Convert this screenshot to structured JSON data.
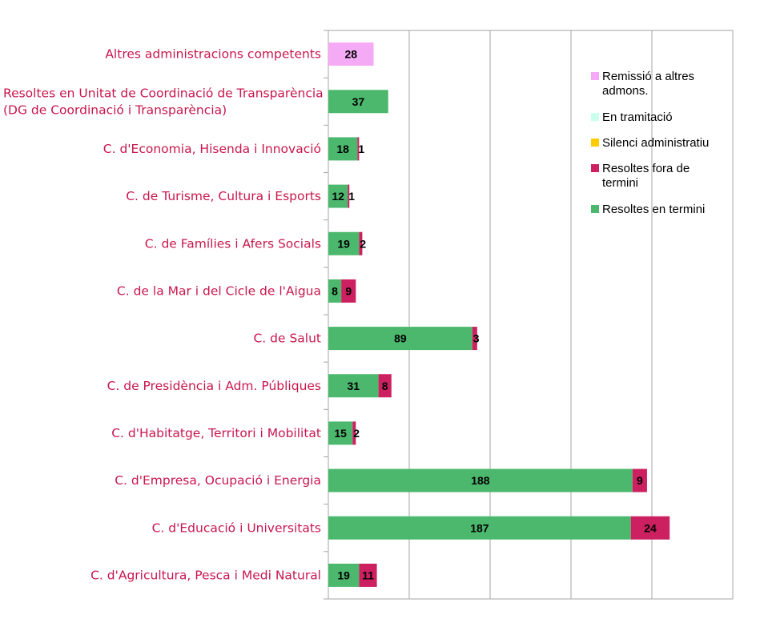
{
  "chart_data": {
    "type": "bar",
    "orientation": "horizontal",
    "stacked": true,
    "xlim": [
      0,
      250
    ],
    "grid": true,
    "legend_position": "right",
    "categories": [
      [
        "Altres  administracions competents"
      ],
      [
        "Resoltes en Unitat de Coordinació de Transparència",
        "(DG de Coordinació i Transparència)"
      ],
      [
        "C. d'Economia, Hisenda i Innovació"
      ],
      [
        "C. de Turisme, Cultura i Esports"
      ],
      [
        "C. de Famílies i Afers Socials"
      ],
      [
        "C. de la Mar i del Cicle de l'Aigua"
      ],
      [
        "C. de Salut"
      ],
      [
        "C. de Presidència i Adm. Públiques"
      ],
      [
        "C. d'Habitatge, Territori i Mobilitat"
      ],
      [
        "C. d'Empresa, Ocupació i Energia"
      ],
      [
        "C. d'Educació i Universitats"
      ],
      [
        "C. d'Agricultura, Pesca i Medi Natural"
      ]
    ],
    "series": [
      {
        "name": [
          "Resoltes en termini"
        ],
        "color": "#4cb86d",
        "values": [
          0,
          37,
          18,
          12,
          19,
          8,
          89,
          31,
          15,
          188,
          187,
          19
        ]
      },
      {
        "name": [
          "Resoltes fora de",
          "termini"
        ],
        "color": "#cc2060",
        "values": [
          0,
          0,
          1,
          1,
          2,
          9,
          3,
          8,
          2,
          9,
          24,
          11
        ]
      },
      {
        "name": [
          "Silenci administratiu"
        ],
        "color": "#ffcc00",
        "values": [
          0,
          0,
          0,
          0,
          0,
          0,
          0,
          0,
          0,
          0,
          0,
          0
        ]
      },
      {
        "name": [
          "En tramitació"
        ],
        "color": "#ccffee",
        "values": [
          0,
          0,
          0,
          0,
          0,
          0,
          0,
          0,
          0,
          0,
          0,
          0
        ]
      },
      {
        "name": [
          "Remissió a altres",
          "admons."
        ],
        "color": "#f5aaf5",
        "values": [
          28,
          0,
          0,
          0,
          0,
          0,
          0,
          0,
          0,
          0,
          0,
          0
        ]
      }
    ],
    "legend_order": [
      4,
      3,
      2,
      1,
      0
    ]
  }
}
